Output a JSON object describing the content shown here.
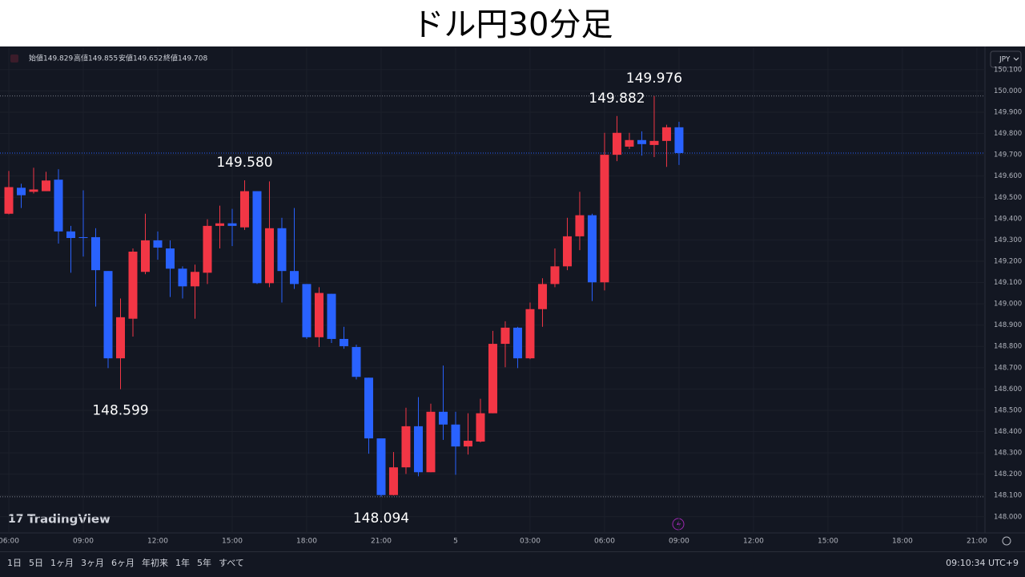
{
  "title": "ドル円30分足",
  "watermark": "TradingView",
  "toolbar": {
    "ranges": [
      "1日",
      "5日",
      "1ヶ月",
      "3ヶ月",
      "6ヶ月",
      "年初来",
      "1年",
      "5年",
      "すべて"
    ],
    "clock": "09:10:34 UTC+9"
  },
  "chart_data": {
    "type": "candlestick",
    "currency": "JPY",
    "header": [
      {
        "label": "始値",
        "value": 149.829
      },
      {
        "label": "高値",
        "value": 149.855
      },
      {
        "label": "安値",
        "value": 149.652
      },
      {
        "label": "終値",
        "value": 149.708
      }
    ],
    "up_color": "#f23645",
    "down_color": "#2962ff",
    "grid": true,
    "open": [
      149.423,
      149.545,
      149.526,
      149.529,
      149.583,
      149.34,
      149.313,
      149.313,
      149.154,
      148.744,
      148.93,
      149.15,
      149.298,
      149.26,
      149.165,
      149.082,
      149.146,
      149.366,
      149.378,
      149.359,
      149.529,
      149.097,
      149.355,
      149.154,
      149.093,
      148.843,
      149.047,
      148.835,
      148.797,
      148.653,
      148.368,
      148.102,
      148.232,
      148.425,
      148.209,
      148.493,
      148.433,
      148.33,
      148.353,
      148.486,
      148.812,
      148.888,
      148.744,
      148.975,
      149.093,
      149.176,
      149.317,
      149.416,
      149.101,
      149.7,
      149.738,
      149.769,
      149.746,
      149.765,
      149.829
    ],
    "high": [
      149.624,
      149.564,
      149.639,
      149.62,
      149.632,
      149.366,
      149.533,
      149.355,
      149.154,
      149.025,
      149.26,
      149.423,
      149.34,
      149.298,
      149.176,
      149.184,
      149.397,
      149.461,
      149.446,
      149.58,
      149.529,
      149.575,
      149.404,
      149.45,
      149.093,
      149.078,
      149.047,
      148.892,
      148.808,
      148.653,
      148.368,
      148.304,
      148.512,
      148.562,
      148.531,
      148.71,
      148.493,
      148.486,
      148.554,
      148.873,
      148.918,
      148.892,
      149.006,
      149.12,
      149.26,
      149.404,
      149.526,
      149.423,
      149.803,
      149.882,
      149.803,
      149.81,
      149.976,
      149.841,
      149.855
    ],
    "low": [
      149.42,
      149.45,
      149.518,
      149.529,
      149.283,
      149.146,
      149.222,
      148.987,
      148.698,
      148.599,
      148.846,
      149.139,
      149.207,
      149.032,
      149.025,
      148.93,
      149.093,
      149.26,
      149.271,
      149.347,
      149.093,
      149.078,
      149.006,
      149.07,
      148.835,
      148.797,
      148.816,
      148.789,
      148.645,
      148.296,
      148.094,
      148.1,
      148.201,
      148.19,
      148.209,
      148.361,
      148.197,
      148.292,
      148.349,
      148.486,
      148.702,
      148.698,
      148.74,
      148.892,
      149.078,
      149.158,
      149.252,
      149.013,
      149.063,
      149.67,
      149.727,
      149.696,
      149.689,
      149.643,
      149.652
    ],
    "close": [
      149.548,
      149.51,
      149.537,
      149.579,
      149.34,
      149.309,
      149.309,
      149.158,
      148.744,
      148.937,
      149.245,
      149.298,
      149.264,
      149.165,
      149.082,
      149.15,
      149.366,
      149.378,
      149.366,
      149.529,
      149.097,
      149.355,
      149.154,
      149.093,
      148.843,
      149.051,
      148.835,
      148.801,
      148.657,
      148.368,
      148.102,
      148.232,
      148.425,
      148.209,
      148.493,
      148.433,
      148.33,
      148.357,
      148.486,
      148.812,
      148.888,
      148.744,
      148.975,
      149.093,
      149.176,
      149.317,
      149.416,
      149.101,
      149.7,
      149.803,
      149.769,
      149.75,
      149.765,
      149.829,
      149.708
    ],
    "annotations": [
      {
        "value": 149.976,
        "label": "149.976"
      },
      {
        "value": 149.882,
        "label": "149.882"
      },
      {
        "value": 149.58,
        "label": "149.580"
      },
      {
        "value": 148.599,
        "label": "148.599"
      },
      {
        "value": 148.094,
        "label": "148.094"
      }
    ],
    "ylim": [
      147.924,
      150.201
    ],
    "yticks": [
      {
        "value": 148.0,
        "label": "148.000"
      },
      {
        "value": 148.1,
        "label": "148.100"
      },
      {
        "value": 148.2,
        "label": "148.200"
      },
      {
        "value": 148.3,
        "label": "148.300"
      },
      {
        "value": 148.4,
        "label": "148.400"
      },
      {
        "value": 148.5,
        "label": "148.500"
      },
      {
        "value": 148.6,
        "label": "148.600"
      },
      {
        "value": 148.7,
        "label": "148.700"
      },
      {
        "value": 148.8,
        "label": "148.800"
      },
      {
        "value": 148.9,
        "label": "148.900"
      },
      {
        "value": 149.0,
        "label": "149.000"
      },
      {
        "value": 149.1,
        "label": "149.100"
      },
      {
        "value": 149.2,
        "label": "149.200"
      },
      {
        "value": 149.3,
        "label": "149.300"
      },
      {
        "value": 149.4,
        "label": "149.400"
      },
      {
        "value": 149.5,
        "label": "149.500"
      },
      {
        "value": 149.6,
        "label": "149.600"
      },
      {
        "value": 149.7,
        "label": "149.700"
      },
      {
        "value": 149.8,
        "label": "149.800"
      },
      {
        "value": 149.9,
        "label": "149.900"
      },
      {
        "value": 150.0,
        "label": "150.000"
      },
      {
        "value": 150.1,
        "label": "150.100"
      }
    ],
    "xlim": [
      -0.71,
      78.65
    ],
    "xticks": [
      {
        "value": 0,
        "label": "06:00"
      },
      {
        "value": 6,
        "label": "09:00"
      },
      {
        "value": 12,
        "label": "12:00"
      },
      {
        "value": 18,
        "label": "15:00"
      },
      {
        "value": 24,
        "label": "18:00"
      },
      {
        "value": 30,
        "label": "21:00"
      },
      {
        "value": 36,
        "label": "5"
      },
      {
        "value": 42,
        "label": "03:00"
      },
      {
        "value": 48,
        "label": "06:00"
      },
      {
        "value": 54,
        "label": "09:00"
      },
      {
        "value": 60,
        "label": "12:00"
      },
      {
        "value": 66,
        "label": "15:00"
      },
      {
        "value": 72,
        "label": "18:00"
      },
      {
        "value": 78,
        "label": "21:00"
      }
    ]
  }
}
